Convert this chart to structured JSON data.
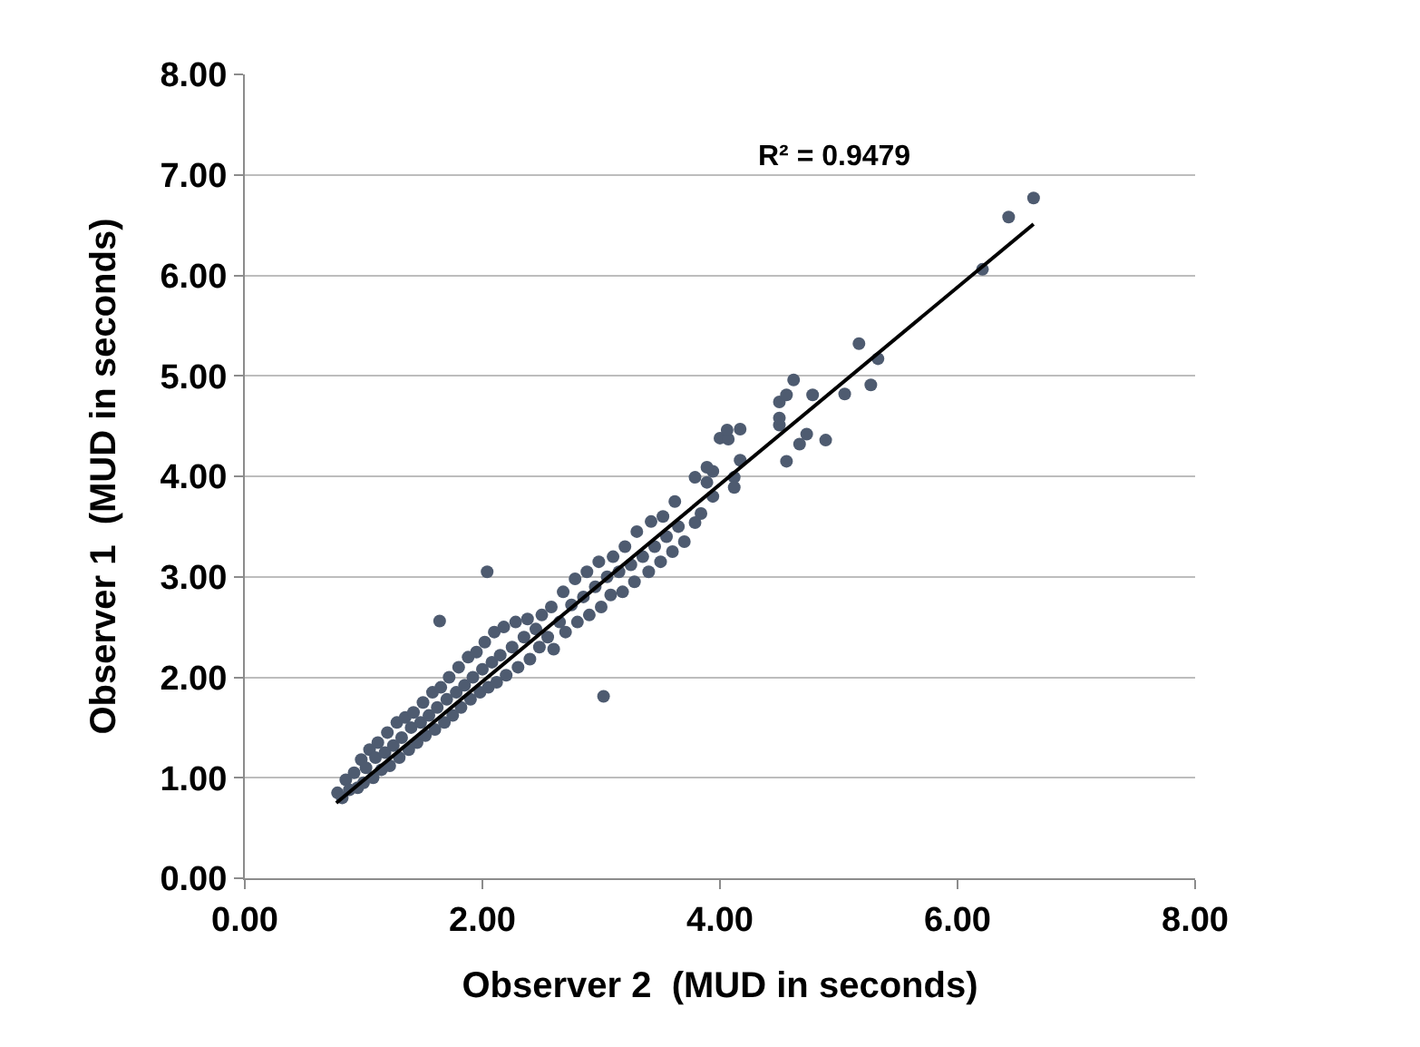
{
  "chart_data": {
    "type": "scatter",
    "xlabel": "Observer 2  (MUD in seconds)",
    "ylabel": "Observer 1  (MUD in seconds)",
    "xlim": [
      0,
      8
    ],
    "xticks": [
      {
        "value": 0,
        "label": "0.00"
      },
      {
        "value": 2,
        "label": "2.00"
      },
      {
        "value": 4,
        "label": "4.00"
      },
      {
        "value": 6,
        "label": "6.00"
      },
      {
        "value": 8,
        "label": "8.00"
      }
    ],
    "ylim": [
      0,
      8
    ],
    "yticks": [
      {
        "value": 0,
        "label": "0.00"
      },
      {
        "value": 1,
        "label": "1.00"
      },
      {
        "value": 2,
        "label": "2.00"
      },
      {
        "value": 3,
        "label": "3.00"
      },
      {
        "value": 4,
        "label": "4.00"
      },
      {
        "value": 5,
        "label": "5.00"
      },
      {
        "value": 6,
        "label": "6.00"
      },
      {
        "value": 7,
        "label": "7.00"
      },
      {
        "value": 8,
        "label": "8.00"
      }
    ],
    "grid": "y",
    "marker": "circle",
    "annotations": [
      "R² = 0.9479"
    ],
    "series": [
      {
        "type": "scatter",
        "color": "#4e5b70",
        "x": [
          0.78,
          0.82,
          0.85,
          0.88,
          0.92,
          0.95,
          0.98,
          1.0,
          1.02,
          1.05,
          1.08,
          1.1,
          1.12,
          1.15,
          1.18,
          1.2,
          1.22,
          1.25,
          1.28,
          1.3,
          1.32,
          1.35,
          1.38,
          1.4,
          1.42,
          1.45,
          1.48,
          1.5,
          1.52,
          1.55,
          1.58,
          1.6,
          1.62,
          1.65,
          1.68,
          1.7,
          1.72,
          1.75,
          1.78,
          1.8,
          1.82,
          1.85,
          1.88,
          1.9,
          1.92,
          1.95,
          1.98,
          2.0,
          2.02,
          2.05,
          2.08,
          2.1,
          2.12,
          2.15,
          2.18,
          2.2,
          2.25,
          2.28,
          2.3,
          2.35,
          2.38,
          2.4,
          2.45,
          2.48,
          2.5,
          2.55,
          2.58,
          2.6,
          2.65,
          2.68,
          2.7,
          2.75,
          2.78,
          2.8,
          2.85,
          2.88,
          2.9,
          2.95,
          2.98,
          3.0,
          3.05,
          3.08,
          3.1,
          3.15,
          3.18,
          3.2,
          3.25,
          3.28,
          3.3,
          3.35,
          3.4,
          3.42,
          3.45,
          3.5,
          3.52,
          3.55,
          3.6,
          3.62,
          3.65,
          3.7,
          1.64,
          2.04,
          3.02,
          3.79,
          3.84,
          3.79,
          3.89,
          3.94,
          3.94,
          3.89,
          4.12,
          4.12,
          4.17,
          4.0,
          4.07,
          4.06,
          4.17,
          4.5,
          4.5,
          4.56,
          4.67,
          4.89,
          4.73,
          4.78,
          4.5,
          4.56,
          4.62,
          5.05,
          5.27,
          5.33,
          5.17,
          6.21,
          6.43,
          6.64
        ],
        "values": [
          0.85,
          0.8,
          0.98,
          0.88,
          1.05,
          0.9,
          1.18,
          0.95,
          1.1,
          1.28,
          1.0,
          1.2,
          1.35,
          1.08,
          1.25,
          1.45,
          1.12,
          1.32,
          1.55,
          1.2,
          1.4,
          1.6,
          1.28,
          1.5,
          1.65,
          1.35,
          1.55,
          1.75,
          1.42,
          1.62,
          1.85,
          1.48,
          1.7,
          1.9,
          1.55,
          1.78,
          2.0,
          1.62,
          1.85,
          2.1,
          1.7,
          1.92,
          2.2,
          1.78,
          2.0,
          2.25,
          1.85,
          2.08,
          2.35,
          1.9,
          2.15,
          2.45,
          1.95,
          2.22,
          2.5,
          2.02,
          2.3,
          2.55,
          2.1,
          2.4,
          2.58,
          2.18,
          2.48,
          2.3,
          2.62,
          2.4,
          2.7,
          2.28,
          2.55,
          2.85,
          2.45,
          2.72,
          2.98,
          2.55,
          2.8,
          3.05,
          2.62,
          2.9,
          3.15,
          2.7,
          3.0,
          2.82,
          3.2,
          3.05,
          2.85,
          3.3,
          3.12,
          2.95,
          3.45,
          3.2,
          3.05,
          3.55,
          3.3,
          3.15,
          3.6,
          3.4,
          3.25,
          3.75,
          3.5,
          3.35,
          2.56,
          3.05,
          1.81,
          3.99,
          3.63,
          3.54,
          3.94,
          4.05,
          3.8,
          4.09,
          3.99,
          3.89,
          4.16,
          4.38,
          4.37,
          4.46,
          4.47,
          4.51,
          4.58,
          4.15,
          4.32,
          4.36,
          4.42,
          4.81,
          4.74,
          4.81,
          4.96,
          4.82,
          4.91,
          5.17,
          5.32,
          6.06,
          6.58,
          6.77
        ]
      },
      {
        "type": "line",
        "color": "#000000",
        "marker": "none",
        "x": [
          0.77,
          6.64
        ],
        "values": [
          0.75,
          6.51
        ]
      }
    ]
  }
}
